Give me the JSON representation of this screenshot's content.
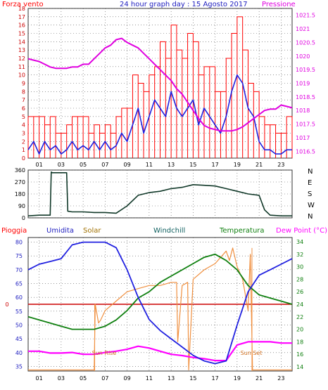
{
  "title": "24 hour graph day : 15 Agosto 2017",
  "colors": {
    "wind": "#ff0000",
    "pressure": "#e000e0",
    "avgwind": "#2020e0",
    "winddir": "#103828",
    "rain": "#cc0000",
    "humidity": "#2020e0",
    "solar": "#f09040",
    "windchill": "#106010",
    "temperature": "#108010",
    "dewpoint": "#ff00ff",
    "grid": "#555555"
  },
  "chart_data": [
    {
      "id": "wind_pressure",
      "type": "line",
      "title": "24 hour graph day : 15 Agosto 2017",
      "left_label": "Forza vento",
      "right_label": "Pressione",
      "left_ticks": [
        "0",
        "1",
        "2",
        "3",
        "4",
        "5",
        "6",
        "7",
        "8",
        "9",
        "10",
        "11",
        "12",
        "13",
        "14",
        "15",
        "16",
        "17",
        "18"
      ],
      "right_ticks": [
        "1016.5",
        "1017",
        "1017.5",
        "1018",
        "1018.5",
        "1019",
        "1019.5",
        "1020",
        "1020.5",
        "1021",
        "1021.5"
      ],
      "x_ticks": [
        "01",
        "03",
        "05",
        "07",
        "09",
        "11",
        "13",
        "15",
        "17",
        "19",
        "21",
        "23"
      ],
      "xlim": [
        0,
        24
      ],
      "ylim_left": [
        0,
        18
      ],
      "ylim_right": [
        1016.25,
        1021.75
      ],
      "series": [
        {
          "key": "pressure",
          "x": [
            0,
            0.5,
            1,
            1.5,
            2,
            2.5,
            3,
            3.5,
            4,
            4.5,
            5,
            5.5,
            6,
            6.5,
            7,
            7.5,
            8,
            8.5,
            9,
            9.5,
            10,
            10.5,
            11,
            11.5,
            12,
            12.5,
            13,
            13.5,
            14,
            14.5,
            15,
            15.5,
            16,
            16.5,
            17,
            17.5,
            18,
            18.5,
            19,
            19.5,
            20,
            20.5,
            21,
            21.5,
            22,
            22.5,
            23,
            23.5,
            24
          ],
          "y": [
            1019.9,
            1019.85,
            1019.8,
            1019.7,
            1019.6,
            1019.55,
            1019.55,
            1019.55,
            1019.6,
            1019.6,
            1019.7,
            1019.7,
            1019.9,
            1020.1,
            1020.3,
            1020.4,
            1020.6,
            1020.65,
            1020.5,
            1020.4,
            1020.3,
            1020.1,
            1019.9,
            1019.7,
            1019.5,
            1019.3,
            1019.1,
            1018.8,
            1018.6,
            1018.3,
            1018.0,
            1017.7,
            1017.45,
            1017.35,
            1017.3,
            1017.25,
            1017.25,
            1017.25,
            1017.3,
            1017.4,
            1017.55,
            1017.7,
            1017.85,
            1018.0,
            1018.05,
            1018.05,
            1018.2,
            1018.15,
            1018.1
          ]
        },
        {
          "key": "avgwind",
          "x": [
            0,
            0.5,
            1,
            1.5,
            2,
            2.5,
            3,
            3.5,
            4,
            4.5,
            5,
            5.5,
            6,
            6.5,
            7,
            7.5,
            8,
            8.5,
            9,
            9.5,
            10,
            10.5,
            11,
            11.5,
            12,
            12.5,
            13,
            13.5,
            14,
            14.5,
            15,
            15.5,
            16,
            16.5,
            17,
            17.5,
            18,
            18.5,
            19,
            19.5,
            20,
            20.5,
            21,
            21.5,
            22,
            22.5,
            23,
            23.5,
            24
          ],
          "y": [
            1,
            2,
            0.5,
            2,
            1,
            1.5,
            0.5,
            1,
            2,
            1,
            1.5,
            1,
            2,
            1,
            2,
            1,
            1.5,
            3,
            2,
            4,
            6,
            3,
            5,
            7,
            6,
            5,
            8,
            6,
            5,
            6,
            7,
            4,
            6,
            5,
            4,
            3,
            5,
            8,
            10,
            9,
            6,
            5,
            2,
            1,
            1,
            0.5,
            0.5,
            1,
            1
          ]
        },
        {
          "key": "wind_max",
          "x": [
            0,
            0.5,
            1,
            1.5,
            2,
            2.5,
            3,
            3.5,
            4,
            4.5,
            5,
            5.5,
            6,
            6.5,
            7,
            7.5,
            8,
            8.5,
            9,
            9.5,
            10,
            10.5,
            11,
            11.5,
            12,
            12.5,
            13,
            13.5,
            14,
            14.5,
            15,
            15.5,
            16,
            16.5,
            17,
            17.5,
            18,
            18.5,
            19,
            19.5,
            20,
            20.5,
            21,
            21.5,
            22,
            22.5,
            23,
            23.5,
            24
          ],
          "y": [
            5,
            5,
            5,
            4,
            5,
            3,
            3,
            4,
            5,
            5,
            5,
            3,
            4,
            3,
            4,
            3,
            5,
            6,
            6,
            10,
            9,
            8,
            10,
            11,
            14,
            12,
            16,
            13,
            12,
            15,
            14,
            10,
            11,
            11,
            8,
            8,
            12,
            15,
            17,
            13,
            9,
            8,
            5,
            4,
            4,
            3,
            3,
            5,
            4
          ]
        }
      ]
    },
    {
      "id": "wind_direction",
      "type": "line",
      "left_ticks": [
        "0",
        "90",
        "180",
        "270",
        "360"
      ],
      "right_ticks": [
        "N",
        "W",
        "S",
        "E",
        "N"
      ],
      "xlim": [
        0,
        24
      ],
      "ylim": [
        0,
        360
      ],
      "series": [
        {
          "key": "winddir",
          "x": [
            0,
            1,
            2,
            2.1,
            2.2,
            3.5,
            3.6,
            4,
            5,
            6,
            7,
            8,
            9,
            10,
            11,
            12,
            13,
            14,
            15,
            16,
            17,
            18,
            19,
            20,
            21,
            21.5,
            22,
            23,
            24
          ],
          "y": [
            15,
            20,
            20,
            345,
            340,
            340,
            50,
            45,
            45,
            40,
            40,
            35,
            90,
            170,
            190,
            200,
            220,
            230,
            250,
            245,
            240,
            220,
            200,
            180,
            170,
            60,
            20,
            15,
            15
          ]
        }
      ]
    },
    {
      "id": "temp_humidity",
      "type": "line",
      "legend": [
        "Pioggia",
        "Umidita",
        "Solar",
        "Windchill",
        "Temperatura",
        "Dew Point (°C)"
      ],
      "left_ticks": [
        "35",
        "40",
        "45",
        "50",
        "55",
        "60",
        "65",
        "70",
        "75",
        "80"
      ],
      "right_ticks": [
        "14",
        "16",
        "18",
        "20",
        "22",
        "24",
        "26",
        "28",
        "30",
        "32",
        "34"
      ],
      "x_ticks": [
        "01",
        "03",
        "05",
        "07",
        "09",
        "11",
        "13",
        "15",
        "17",
        "19",
        "21",
        "23"
      ],
      "rain_label": "0",
      "annotations": [
        "Sun Rise",
        "Sun Set"
      ],
      "xlim": [
        0,
        24
      ],
      "ylim_left": [
        33.33,
        81.67
      ],
      "ylim_right": [
        13.33,
        34.67
      ],
      "series": [
        {
          "key": "humidity",
          "x": [
            0,
            1,
            2,
            3,
            4,
            5,
            6,
            7,
            8,
            9,
            10,
            11,
            12,
            13,
            14,
            15,
            16,
            17,
            18,
            19,
            20,
            21,
            22,
            23,
            24
          ],
          "y": [
            70,
            72,
            73,
            74,
            79,
            80,
            80,
            80,
            78,
            70,
            60,
            52,
            48,
            45,
            42,
            39,
            37,
            36,
            37,
            50,
            62,
            68,
            70,
            72,
            74
          ]
        },
        {
          "key": "temperature",
          "x": [
            0,
            1,
            2,
            3,
            4,
            5,
            6,
            7,
            8,
            9,
            10,
            11,
            12,
            13,
            14,
            15,
            16,
            17,
            18,
            19,
            20,
            21,
            22,
            23,
            24
          ],
          "y": [
            22,
            21.5,
            21,
            20.5,
            20,
            20,
            20,
            20.5,
            21.5,
            23,
            25,
            26,
            27.5,
            28.5,
            29.5,
            30.5,
            31.5,
            32,
            31,
            29.5,
            27,
            25.5,
            25,
            24.5,
            24
          ]
        },
        {
          "key": "dewpoint",
          "x": [
            0,
            1,
            2,
            3,
            4,
            5,
            6,
            7,
            8,
            9,
            10,
            11,
            12,
            13,
            14,
            15,
            16,
            17,
            18,
            19,
            20,
            21,
            22,
            23,
            24
          ],
          "y": [
            16.5,
            16.5,
            16.2,
            16.2,
            16.3,
            16,
            16,
            16.3,
            16.5,
            16.8,
            17.3,
            17,
            16.5,
            16,
            15.8,
            15.5,
            15.3,
            15,
            15,
            17.5,
            18,
            18,
            18,
            17.8,
            17.8
          ]
        },
        {
          "key": "solar",
          "x": [
            0,
            6,
            6.1,
            6.4,
            6.6,
            7,
            8,
            9,
            10,
            11,
            12,
            13,
            13.5,
            13.6,
            14,
            14.5,
            14.6,
            15,
            16,
            17,
            18,
            18.3,
            18.6,
            19,
            19.5,
            20,
            20.2,
            20.4,
            20.6,
            21,
            24
          ],
          "y": [
            13.5,
            13.5,
            24,
            21,
            21.5,
            23,
            24.5,
            26,
            26.5,
            27,
            27,
            27.5,
            27.5,
            18,
            27,
            27.5,
            13.5,
            28,
            29.5,
            30.5,
            32.5,
            31,
            33,
            30,
            28,
            23,
            32,
            13.5,
            13.5,
            13.5,
            13.5
          ]
        }
      ]
    }
  ]
}
